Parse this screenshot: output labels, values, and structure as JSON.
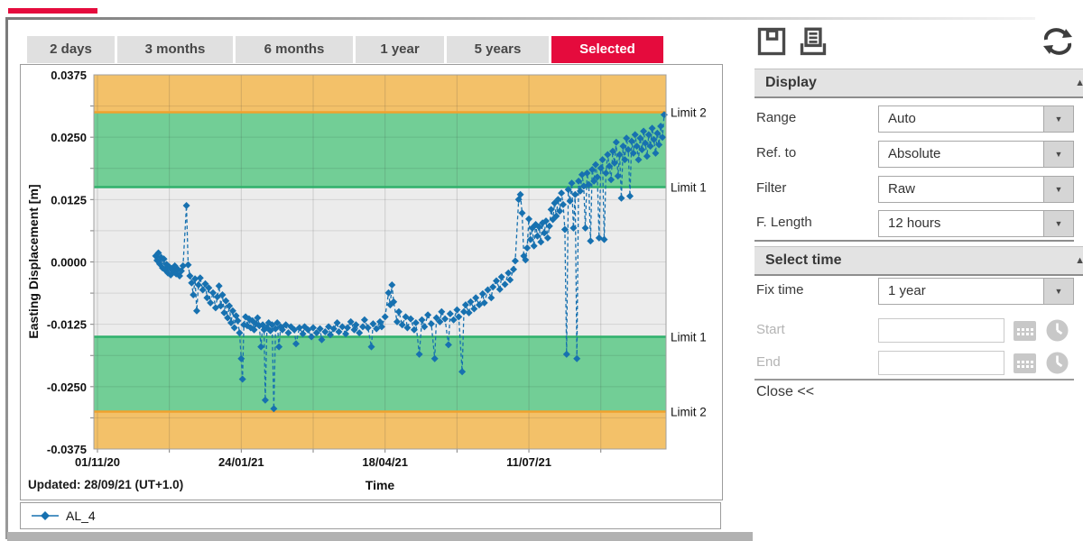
{
  "accent_color": "#e50b3d",
  "tabs": [
    {
      "label": "2 days",
      "selected": false
    },
    {
      "label": "3 months",
      "selected": false
    },
    {
      "label": "6 months",
      "selected": false
    },
    {
      "label": "1 year",
      "selected": false
    },
    {
      "label": "5 years",
      "selected": false
    },
    {
      "label": "Selected",
      "selected": true
    }
  ],
  "toolbar": {
    "icons": [
      "save",
      "print",
      "refresh"
    ]
  },
  "panel": {
    "display": {
      "title": "Display",
      "rows": [
        {
          "label": "Range",
          "value": "Auto"
        },
        {
          "label": "Ref. to",
          "value": "Absolute"
        },
        {
          "label": "Filter",
          "value": "Raw"
        },
        {
          "label": "F. Length",
          "value": "12 hours"
        }
      ]
    },
    "select_time": {
      "title": "Select time",
      "fix_time": {
        "label": "Fix time",
        "value": "1 year"
      },
      "start_label": "Start",
      "start_value": "",
      "end_label": "End",
      "end_value": ""
    },
    "close_label": "Close <<"
  },
  "chart_data": {
    "type": "scatter",
    "title": "",
    "xlabel": "Time",
    "ylabel": "Easting Displacement [m]",
    "updated_label": "Updated: 28/09/21 (UT+1.0)",
    "x_unit": "days since 01/11/20",
    "xlim": [
      -2.1,
      332.1
    ],
    "ylim": [
      -0.0375,
      0.0375
    ],
    "y_ticks": [
      {
        "value": 0.0375,
        "label": "0.0375"
      },
      {
        "value": 0.025,
        "label": "0.0250"
      },
      {
        "value": 0.0125,
        "label": "0.0125"
      },
      {
        "value": 0.0,
        "label": "0.0000"
      },
      {
        "value": -0.0125,
        "label": "-0.0125"
      },
      {
        "value": -0.025,
        "label": "-0.0250"
      },
      {
        "value": -0.0375,
        "label": "-0.0375"
      }
    ],
    "x_ticks": [
      {
        "day": 0,
        "label": "01/11/20"
      },
      {
        "day": 84,
        "label": "24/01/21"
      },
      {
        "day": 168,
        "label": "18/04/21"
      },
      {
        "day": 252,
        "label": "11/07/21"
      }
    ],
    "grid": {
      "x_days": [
        0,
        42,
        84,
        126,
        168,
        210,
        252,
        294
      ],
      "y_step": 0.00625
    },
    "colors": {
      "plot_bg": "#ececec",
      "band_green": "#72ce96",
      "band_orange": "#f3c169",
      "limit_green": "#2fb06b",
      "limit_orange": "#f0a22e",
      "series_blue": "#1771b0"
    },
    "bands": [
      {
        "from": 0.03,
        "to": 0.0375,
        "color": "#f3c169"
      },
      {
        "from": 0.015,
        "to": 0.03,
        "color": "#72ce96"
      },
      {
        "from": -0.03,
        "to": -0.015,
        "color": "#72ce96"
      },
      {
        "from": -0.0375,
        "to": -0.03,
        "color": "#f3c169"
      }
    ],
    "limits": [
      {
        "value": 0.03,
        "label": "Limit 2",
        "color": "#f0a22e"
      },
      {
        "value": 0.015,
        "label": "Limit 1",
        "color": "#2fb06b"
      },
      {
        "value": -0.015,
        "label": "Limit 1",
        "color": "#2fb06b"
      },
      {
        "value": -0.03,
        "label": "Limit 2",
        "color": "#f0a22e"
      }
    ],
    "legend_position": "bottom-left-box",
    "series": [
      {
        "name": "AL_4",
        "color": "#1771b0",
        "marker": "diamond",
        "line": "dashed",
        "points": [
          [
            34,
            0.0012
          ],
          [
            34.8,
            0.0003
          ],
          [
            35.6,
            0.0018
          ],
          [
            36.4,
            -0.0004
          ],
          [
            37.2,
            0.0009
          ],
          [
            38,
            -0.0012
          ],
          [
            38.8,
            0.0006
          ],
          [
            39.6,
            -0.0016
          ],
          [
            40.4,
            -0.0005
          ],
          [
            41.2,
            -0.0022
          ],
          [
            42,
            -0.001
          ],
          [
            42.8,
            -0.0026
          ],
          [
            43.6,
            -0.0013
          ],
          [
            44.4,
            -0.0018
          ],
          [
            45.2,
            -0.0008
          ],
          [
            46,
            -0.0024
          ],
          [
            47,
            -0.0015
          ],
          [
            48,
            -0.0028
          ],
          [
            49,
            -0.0018
          ],
          [
            50,
            -0.0008
          ],
          [
            52,
            0.0113
          ],
          [
            53,
            -0.0006
          ],
          [
            54,
            -0.0028
          ],
          [
            55,
            -0.0042
          ],
          [
            56,
            -0.0066
          ],
          [
            57,
            -0.0034
          ],
          [
            58,
            -0.0098
          ],
          [
            59,
            -0.0046
          ],
          [
            60,
            -0.0032
          ],
          [
            61.5,
            -0.0056
          ],
          [
            63,
            -0.0044
          ],
          [
            64,
            -0.0072
          ],
          [
            65,
            -0.0052
          ],
          [
            66,
            -0.0082
          ],
          [
            67.5,
            -0.0062
          ],
          [
            69,
            -0.0092
          ],
          [
            70,
            -0.007
          ],
          [
            71,
            -0.0048
          ],
          [
            72,
            -0.0088
          ],
          [
            73,
            -0.0066
          ],
          [
            74,
            -0.0102
          ],
          [
            75,
            -0.0078
          ],
          [
            76,
            -0.0112
          ],
          [
            77,
            -0.0088
          ],
          [
            78,
            -0.0122
          ],
          [
            79,
            -0.0098
          ],
          [
            80,
            -0.0132
          ],
          [
            81,
            -0.0108
          ],
          [
            82,
            -0.0118
          ],
          [
            83,
            -0.0142
          ],
          [
            84,
            -0.0194
          ],
          [
            84.7,
            -0.0235
          ],
          [
            85.5,
            -0.0126
          ],
          [
            86.5,
            -0.011
          ],
          [
            87.5,
            -0.0128
          ],
          [
            88.5,
            -0.0114
          ],
          [
            89.5,
            -0.0132
          ],
          [
            90.5,
            -0.0118
          ],
          [
            91.5,
            -0.0136
          ],
          [
            92.5,
            -0.0124
          ],
          [
            93.5,
            -0.0112
          ],
          [
            94.5,
            -0.0128
          ],
          [
            95.5,
            -0.017
          ],
          [
            96.5,
            -0.0126
          ],
          [
            97.3,
            -0.0136
          ],
          [
            98,
            -0.0277
          ],
          [
            99,
            -0.0132
          ],
          [
            100,
            -0.0122
          ],
          [
            101,
            -0.0138
          ],
          [
            102,
            -0.0126
          ],
          [
            103,
            -0.0294
          ],
          [
            104,
            -0.0134
          ],
          [
            105,
            -0.0122
          ],
          [
            106,
            -0.017
          ],
          [
            107,
            -0.013
          ],
          [
            108,
            -0.0136
          ],
          [
            110,
            -0.0126
          ],
          [
            111.5,
            -0.0142
          ],
          [
            113,
            -0.013
          ],
          [
            115,
            -0.0136
          ],
          [
            116,
            -0.0164
          ],
          [
            118,
            -0.0132
          ],
          [
            120,
            -0.0144
          ],
          [
            121,
            -0.013
          ],
          [
            123,
            -0.0136
          ],
          [
            125,
            -0.015
          ],
          [
            126,
            -0.0132
          ],
          [
            128,
            -0.0142
          ],
          [
            130,
            -0.0134
          ],
          [
            131,
            -0.0156
          ],
          [
            133,
            -0.014
          ],
          [
            135,
            -0.013
          ],
          [
            136,
            -0.0146
          ],
          [
            138,
            -0.0134
          ],
          [
            140,
            -0.0122
          ],
          [
            141,
            -0.014
          ],
          [
            143,
            -0.013
          ],
          [
            145,
            -0.0144
          ],
          [
            146,
            -0.0132
          ],
          [
            148,
            -0.012
          ],
          [
            150,
            -0.0136
          ],
          [
            151,
            -0.0126
          ],
          [
            153,
            -0.0142
          ],
          [
            155,
            -0.013
          ],
          [
            156,
            -0.0116
          ],
          [
            158,
            -0.0132
          ],
          [
            160,
            -0.017
          ],
          [
            161,
            -0.0124
          ],
          [
            163,
            -0.0134
          ],
          [
            165,
            -0.012
          ],
          [
            166,
            -0.013
          ],
          [
            168,
            -0.011
          ],
          [
            170,
            -0.0062
          ],
          [
            171,
            -0.0086
          ],
          [
            172,
            -0.0046
          ],
          [
            173,
            -0.008
          ],
          [
            175,
            -0.012
          ],
          [
            176,
            -0.01
          ],
          [
            178,
            -0.0126
          ],
          [
            180,
            -0.011
          ],
          [
            181,
            -0.0132
          ],
          [
            183,
            -0.0114
          ],
          [
            185,
            -0.0136
          ],
          [
            186,
            -0.0122
          ],
          [
            188,
            -0.0185
          ],
          [
            189.5,
            -0.0116
          ],
          [
            191,
            -0.013
          ],
          [
            193,
            -0.0106
          ],
          [
            195,
            -0.0124
          ],
          [
            197,
            -0.0194
          ],
          [
            198,
            -0.0112
          ],
          [
            200,
            -0.012
          ],
          [
            201,
            -0.01
          ],
          [
            203,
            -0.0114
          ],
          [
            205,
            -0.0166
          ],
          [
            206,
            -0.0104
          ],
          [
            208,
            -0.0116
          ],
          [
            210,
            -0.0096
          ],
          [
            211,
            -0.011
          ],
          [
            213,
            -0.022
          ],
          [
            214,
            -0.01
          ],
          [
            215,
            -0.0086
          ],
          [
            217,
            -0.0102
          ],
          [
            218,
            -0.008
          ],
          [
            220,
            -0.0094
          ],
          [
            221,
            -0.0072
          ],
          [
            223,
            -0.0086
          ],
          [
            225,
            -0.0064
          ],
          [
            226,
            -0.0082
          ],
          [
            228,
            -0.0056
          ],
          [
            230,
            -0.0072
          ],
          [
            231,
            -0.005
          ],
          [
            233,
            -0.0038
          ],
          [
            235,
            -0.0055
          ],
          [
            236,
            -0.003
          ],
          [
            238,
            -0.0045
          ],
          [
            240,
            -0.0022
          ],
          [
            241,
            -0.0036
          ],
          [
            243,
            -0.0015
          ],
          [
            244,
            0.0002
          ],
          [
            246,
            0.0125
          ],
          [
            247,
            0.0135
          ],
          [
            248,
            0.0098
          ],
          [
            249,
            0.0012
          ],
          [
            250,
            0.0004
          ],
          [
            251,
            0.0028
          ],
          [
            252,
            0.0086
          ],
          [
            253,
            0.0045
          ],
          [
            254,
            0.0068
          ],
          [
            255,
            0.0032
          ],
          [
            256,
            0.0075
          ],
          [
            257,
            0.0052
          ],
          [
            258,
            0.007
          ],
          [
            259,
            0.004
          ],
          [
            260,
            0.0078
          ],
          [
            261,
            0.0058
          ],
          [
            262,
            0.0082
          ],
          [
            263,
            0.0048
          ],
          [
            264,
            0.0072
          ],
          [
            265,
            0.0105
          ],
          [
            266,
            0.0085
          ],
          [
            267,
            0.0118
          ],
          [
            268,
            0.0092
          ],
          [
            269,
            0.0125
          ],
          [
            270,
            0.0102
          ],
          [
            271,
            0.0138
          ],
          [
            272,
            0.0115
          ],
          [
            273,
            0.0065
          ],
          [
            274,
            -0.0185
          ],
          [
            275,
            0.0145
          ],
          [
            276,
            0.0122
          ],
          [
            277,
            0.0158
          ],
          [
            278,
            0.0068
          ],
          [
            279,
            0.0135
          ],
          [
            280,
            -0.0194
          ],
          [
            281,
            0.0162
          ],
          [
            282,
            0.0142
          ],
          [
            283,
            0.0175
          ],
          [
            284,
            0.0152
          ],
          [
            285,
            0.0068
          ],
          [
            286,
            0.0178
          ],
          [
            287,
            0.0155
          ],
          [
            288,
            0.0042
          ],
          [
            289,
            0.0185
          ],
          [
            290,
            0.0162
          ],
          [
            291,
            0.0195
          ],
          [
            292,
            0.017
          ],
          [
            293,
            0.0048
          ],
          [
            294,
            0.0188
          ],
          [
            295,
            0.0205
          ],
          [
            296,
            0.0045
          ],
          [
            297,
            0.0178
          ],
          [
            298,
            0.0215
          ],
          [
            299,
            0.0192
          ],
          [
            300,
            0.0165
          ],
          [
            301,
            0.0222
          ],
          [
            302,
            0.0198
          ],
          [
            303,
            0.024
          ],
          [
            304,
            0.0172
          ],
          [
            305,
            0.0215
          ],
          [
            306,
            0.0128
          ],
          [
            307,
            0.0232
          ],
          [
            308,
            0.0205
          ],
          [
            309,
            0.0248
          ],
          [
            310,
            0.0225
          ],
          [
            311,
            0.0132
          ],
          [
            312,
            0.0242
          ],
          [
            313,
            0.0218
          ],
          [
            314,
            0.0255
          ],
          [
            315,
            0.0232
          ],
          [
            316,
            0.0205
          ],
          [
            317,
            0.0248
          ],
          [
            318,
            0.0225
          ],
          [
            319,
            0.0262
          ],
          [
            320,
            0.0238
          ],
          [
            321,
            0.0212
          ],
          [
            322,
            0.0255
          ],
          [
            323,
            0.0232
          ],
          [
            324,
            0.0268
          ],
          [
            325,
            0.0245
          ],
          [
            326,
            0.0218
          ],
          [
            327,
            0.0258
          ],
          [
            328,
            0.0235
          ],
          [
            329,
            0.0272
          ],
          [
            330,
            0.025
          ],
          [
            331,
            0.0295
          ]
        ]
      }
    ]
  }
}
